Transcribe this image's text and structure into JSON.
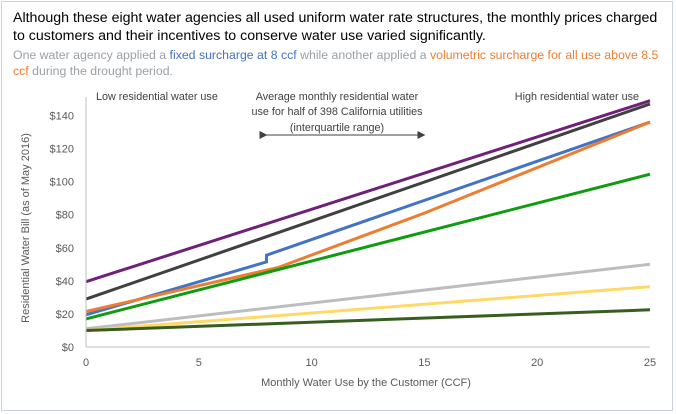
{
  "header": {
    "title": "Although these eight water agencies all used uniform water rate structures, the monthly prices charged to customers and their incentives to conserve water use varied significantly.",
    "subtitle_parts": [
      "One water agency applied a ",
      "fixed surcharge at 8 ccf",
      " while another applied a ",
      "volumetric surcharge for all use above 8.5 ccf",
      " during the drought period."
    ]
  },
  "chart_data": {
    "type": "line",
    "title": "",
    "xlabel": "Monthly Water Use by the Customer (CCF)",
    "ylabel": "Residential Water Bill  (as of May 2016)",
    "xlim": [
      0,
      25
    ],
    "ylim": [
      0,
      150
    ],
    "x_ticks": [
      0,
      5,
      10,
      15,
      20,
      25
    ],
    "y_ticks": [
      0,
      20,
      40,
      60,
      80,
      100,
      120,
      140
    ],
    "x_tick_labels": [
      "0",
      "5",
      "10",
      "15",
      "20",
      "25"
    ],
    "y_tick_labels": [
      "$0",
      "$20",
      "$40",
      "$60",
      "$80",
      "$100",
      "$120",
      "$140"
    ],
    "grid": false,
    "legend": "none",
    "annotations": {
      "low_use": "Low residential water use",
      "high_use": "High residential water use",
      "avg_line1": "Average monthly residential water",
      "avg_line2": "use for half of 398 California utilities",
      "avg_line3": "(interquartile range)",
      "range_x": [
        8,
        15
      ]
    },
    "series": [
      {
        "color": "#70207a",
        "points": [
          [
            0,
            39.5
          ],
          [
            25,
            149
          ]
        ]
      },
      {
        "color": "#404040",
        "points": [
          [
            0,
            29
          ],
          [
            25,
            147
          ]
        ]
      },
      {
        "color": "#4472c4",
        "points": [
          [
            0,
            19.5
          ],
          [
            8,
            51.5
          ],
          [
            8,
            55.5
          ],
          [
            25,
            136
          ]
        ]
      },
      {
        "color": "#ed7d31",
        "points": [
          [
            0,
            21.5
          ],
          [
            8.5,
            48
          ],
          [
            15,
            81
          ],
          [
            25,
            136
          ]
        ]
      },
      {
        "color": "#109c10",
        "points": [
          [
            0,
            17
          ],
          [
            25,
            104.5
          ]
        ]
      },
      {
        "color": "#bdbdbd",
        "points": [
          [
            0,
            11
          ],
          [
            25,
            50
          ]
        ]
      },
      {
        "color": "#ffd966",
        "points": [
          [
            0,
            10
          ],
          [
            25,
            36.5
          ]
        ]
      },
      {
        "color": "#375e1f",
        "points": [
          [
            0,
            10
          ],
          [
            25,
            22.5
          ]
        ]
      }
    ]
  }
}
